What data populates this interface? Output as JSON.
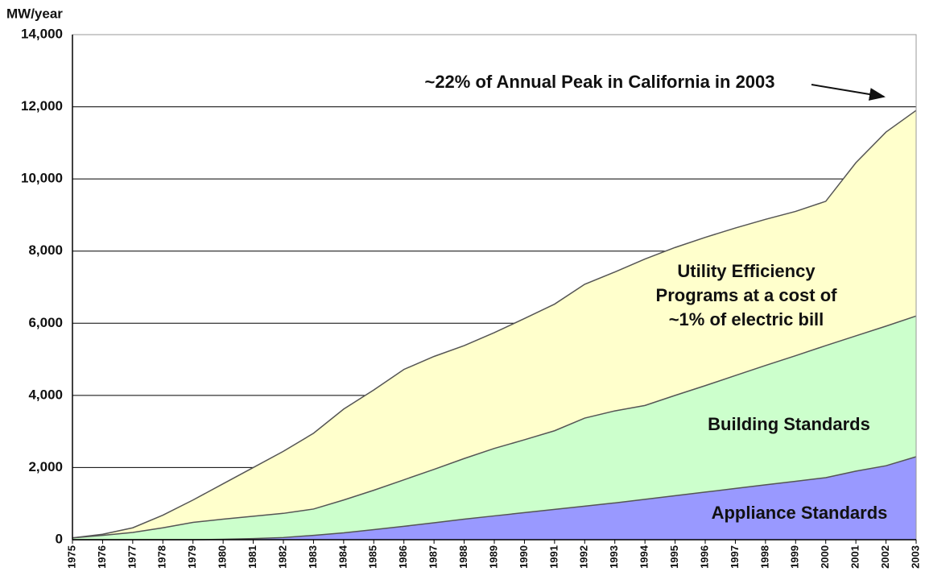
{
  "chart_data": {
    "type": "stacked_area",
    "y_axis_label": "MW/year",
    "categories": [
      "1975",
      "1976",
      "1977",
      "1978",
      "1979",
      "1980",
      "1981",
      "1982",
      "1983",
      "1984",
      "1985",
      "1986",
      "1987",
      "1988",
      "1989",
      "1990",
      "1991",
      "1992",
      "1993",
      "1994",
      "1995",
      "1996",
      "1997",
      "1998",
      "1999",
      "2000",
      "2001",
      "2002",
      "2003"
    ],
    "series": [
      {
        "name": "Appliance Standards",
        "color": "#9999ff",
        "values": [
          0,
          0,
          0,
          0,
          0,
          10,
          30,
          60,
          120,
          190,
          280,
          370,
          470,
          570,
          660,
          750,
          840,
          930,
          1020,
          1120,
          1220,
          1320,
          1420,
          1520,
          1620,
          1720,
          1900,
          2050,
          2300
        ]
      },
      {
        "name": "Building Standards",
        "color": "#ccffcc",
        "values": [
          50,
          120,
          200,
          330,
          480,
          560,
          620,
          670,
          730,
          910,
          1090,
          1290,
          1480,
          1680,
          1870,
          2020,
          2180,
          2440,
          2550,
          2600,
          2780,
          2950,
          3130,
          3310,
          3480,
          3660,
          3750,
          3870,
          3900
        ]
      },
      {
        "name": "Utility Efficiency Programs",
        "color": "#ffffcc",
        "values": [
          0,
          30,
          130,
          350,
          620,
          980,
          1350,
          1720,
          2100,
          2520,
          2780,
          3060,
          3130,
          3130,
          3210,
          3360,
          3510,
          3710,
          3850,
          4060,
          4100,
          4110,
          4090,
          4050,
          4000,
          4000,
          4800,
          5380,
          5700
        ]
      }
    ],
    "annotations": [
      {
        "text": "~22% of Annual Peak in California in 2003"
      },
      {
        "text": "Utility Efficiency"
      },
      {
        "text": "Programs at a cost of"
      },
      {
        "text": "~1% of electric bill"
      },
      {
        "text": "Building Standards"
      },
      {
        "text": "Appliance Standards"
      }
    ],
    "ylim": [
      0,
      14000
    ],
    "yticks": [
      0,
      {
        "value": 2000,
        "label": "2,000"
      },
      {
        "value": 4000,
        "label": "4,000"
      },
      {
        "value": 6000,
        "label": "6,000"
      },
      {
        "value": 8000,
        "label": "8,000"
      },
      {
        "value": 10000,
        "label": "10,000"
      },
      {
        "value": 12000,
        "label": "12,000"
      },
      {
        "value": 14000,
        "label": "14,000"
      }
    ],
    "grid": true
  }
}
